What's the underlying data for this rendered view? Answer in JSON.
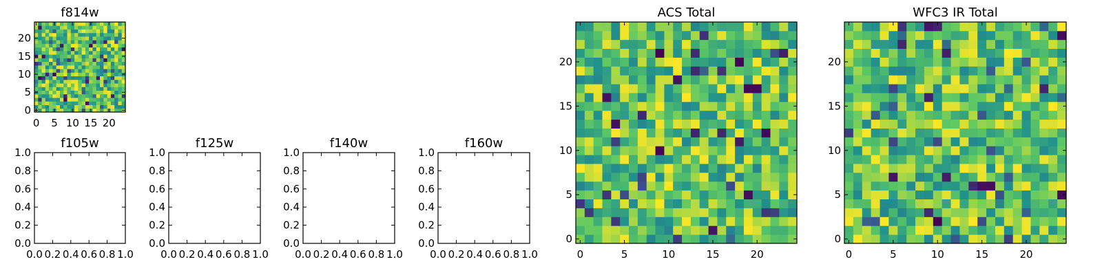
{
  "chart_data": [
    {
      "id": "f814w",
      "type": "heatmap",
      "title": "f814w",
      "grid_size": 25,
      "xlim": [
        -0.5,
        24.5
      ],
      "ylim": [
        -0.5,
        24.5
      ],
      "xticks": [
        0,
        5,
        10,
        15,
        20
      ],
      "yticks": [
        0,
        5,
        10,
        15,
        20
      ],
      "colormap": "viridis",
      "values_note_seed": 814
    },
    {
      "id": "f105w",
      "type": "heatmap",
      "title": "f105w",
      "empty": true,
      "xlim": [
        0.0,
        1.0
      ],
      "ylim": [
        0.0,
        1.0
      ],
      "xticks": [
        "0.0",
        "0.2",
        "0.4",
        "0.6",
        "0.8",
        "1.0"
      ],
      "yticks": [
        "0.0",
        "0.2",
        "0.4",
        "0.6",
        "0.8",
        "1.0"
      ]
    },
    {
      "id": "f125w",
      "type": "heatmap",
      "title": "f125w",
      "empty": true,
      "xlim": [
        0.0,
        1.0
      ],
      "ylim": [
        0.0,
        1.0
      ],
      "xticks": [
        "0.0",
        "0.2",
        "0.4",
        "0.6",
        "0.8",
        "1.0"
      ],
      "yticks": [
        "0.0",
        "0.2",
        "0.4",
        "0.6",
        "0.8",
        "1.0"
      ]
    },
    {
      "id": "f140w",
      "type": "heatmap",
      "title": "f140w",
      "empty": true,
      "xlim": [
        0.0,
        1.0
      ],
      "ylim": [
        0.0,
        1.0
      ],
      "xticks": [
        "0.0",
        "0.2",
        "0.4",
        "0.6",
        "0.8",
        "1.0"
      ],
      "yticks": [
        "0.0",
        "0.2",
        "0.4",
        "0.6",
        "0.8",
        "1.0"
      ]
    },
    {
      "id": "f160w",
      "type": "heatmap",
      "title": "f160w",
      "empty": true,
      "xlim": [
        0.0,
        1.0
      ],
      "ylim": [
        0.0,
        1.0
      ],
      "xticks": [
        "0.0",
        "0.2",
        "0.4",
        "0.6",
        "0.8",
        "1.0"
      ],
      "yticks": [
        "0.0",
        "0.2",
        "0.4",
        "0.6",
        "0.8",
        "1.0"
      ]
    },
    {
      "id": "acs-total",
      "type": "heatmap",
      "title": "ACS Total",
      "grid_size": 25,
      "xlim": [
        -0.5,
        24.5
      ],
      "ylim": [
        -0.5,
        24.5
      ],
      "xticks": [
        0,
        5,
        10,
        15,
        20
      ],
      "yticks": [
        0,
        5,
        10,
        15,
        20
      ],
      "colormap": "viridis",
      "values_note_seed": 1001
    },
    {
      "id": "wfc3-ir-total",
      "type": "heatmap",
      "title": "WFC3 IR Total",
      "grid_size": 25,
      "xlim": [
        -0.5,
        24.5
      ],
      "ylim": [
        -0.5,
        24.5
      ],
      "xticks": [
        0,
        5,
        10,
        15,
        20
      ],
      "yticks": [
        0,
        5,
        10,
        15,
        20
      ],
      "colormap": "viridis",
      "values_note_seed": 3003
    }
  ],
  "colors": {
    "viridis": [
      "#440154",
      "#3b528b",
      "#21918c",
      "#5ec962",
      "#fde725"
    ],
    "axis": "#000000",
    "background": "#ffffff"
  }
}
